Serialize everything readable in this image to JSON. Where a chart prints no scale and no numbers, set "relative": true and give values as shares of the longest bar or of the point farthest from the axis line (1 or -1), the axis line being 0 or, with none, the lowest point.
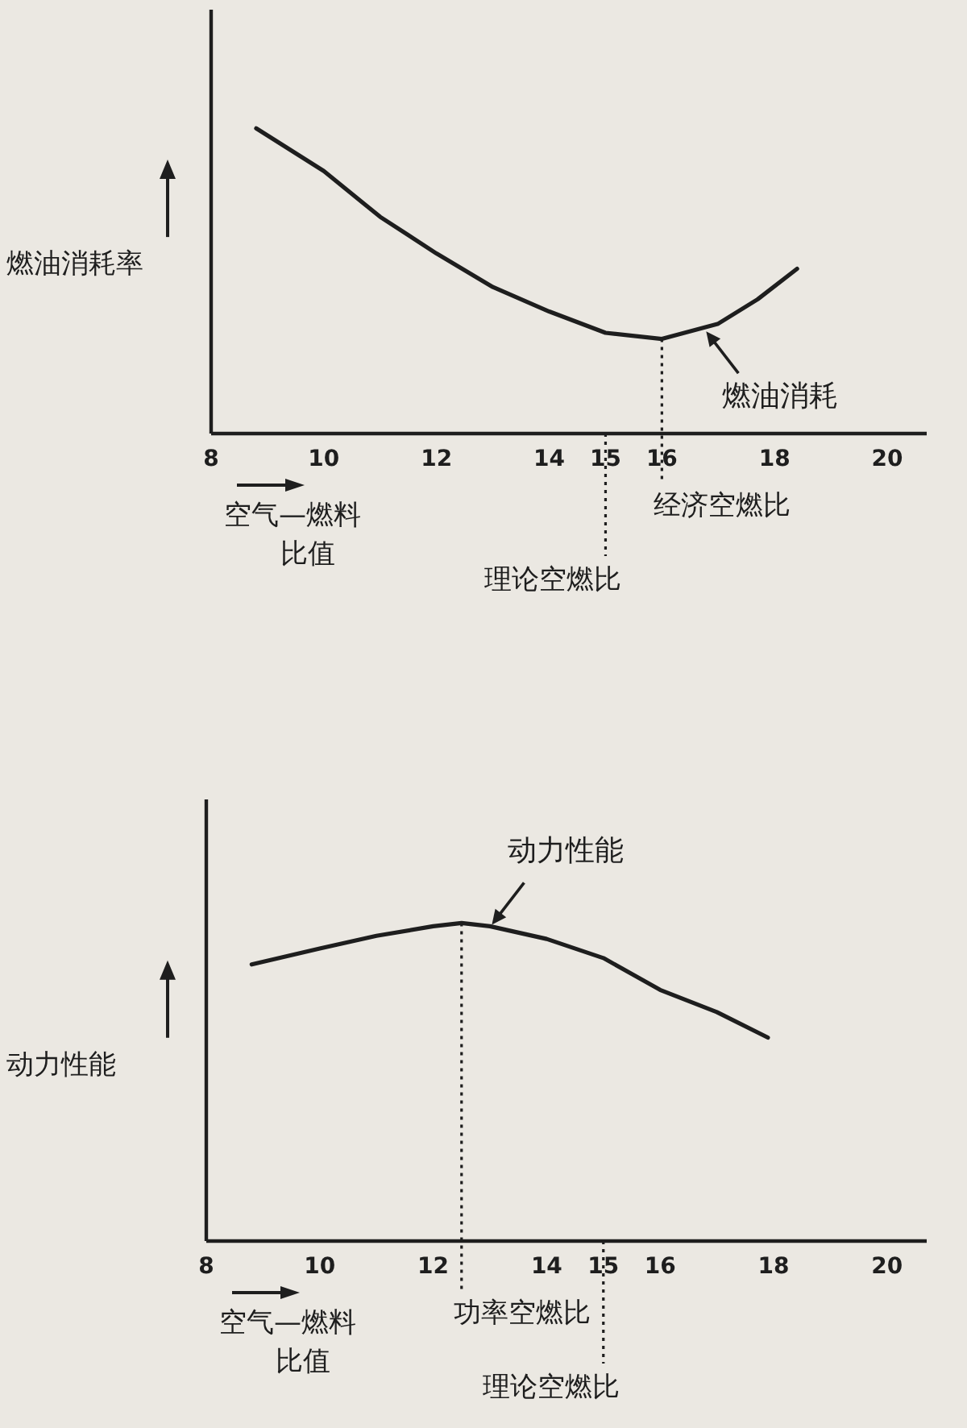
{
  "chart_data": [
    {
      "type": "line",
      "relative": true,
      "ylabel": "燃油消耗率",
      "xlabel": "空气—燃料比值",
      "xlim": [
        8,
        20.7
      ],
      "xticks": [
        8,
        10,
        12,
        14,
        15,
        16,
        18,
        20
      ],
      "series": [
        {
          "name": "燃油消耗",
          "color": "#1e1e1e",
          "x": [
            8.8,
            10,
            11,
            12,
            13,
            14,
            15,
            16,
            17,
            17.7,
            18.4
          ],
          "values": [
            1,
            0.86,
            0.71,
            0.59,
            0.48,
            0.4,
            0.33,
            0.31,
            0.36,
            0.44,
            0.54
          ]
        }
      ],
      "ref_lines": [
        {
          "axis": "x",
          "value": 16,
          "label": "经济空燃比",
          "line_style": "dotted"
        },
        {
          "axis": "x",
          "value": 15,
          "label": "理论空燃比",
          "line_style": "dotted"
        }
      ]
    },
    {
      "type": "line",
      "relative": true,
      "ylabel": "动力性能",
      "xlabel": "空气—燃料比值",
      "xlim": [
        8,
        20.7
      ],
      "xticks": [
        8,
        10,
        12,
        14,
        15,
        16,
        18,
        20
      ],
      "series": [
        {
          "name": "动力性能",
          "color": "#1e1e1e",
          "x": [
            8.8,
            10,
            11,
            12,
            12.5,
            13,
            14,
            15,
            16,
            17,
            17.9
          ],
          "values": [
            0.87,
            0.92,
            0.96,
            0.99,
            1,
            0.99,
            0.95,
            0.89,
            0.79,
            0.72,
            0.64
          ]
        }
      ],
      "ref_lines": [
        {
          "axis": "x",
          "value": 12.5,
          "label": "功率空燃比",
          "line_style": "dotted"
        },
        {
          "axis": "x",
          "value": 15,
          "label": "理论空燃比",
          "line_style": "dotted"
        }
      ]
    }
  ]
}
